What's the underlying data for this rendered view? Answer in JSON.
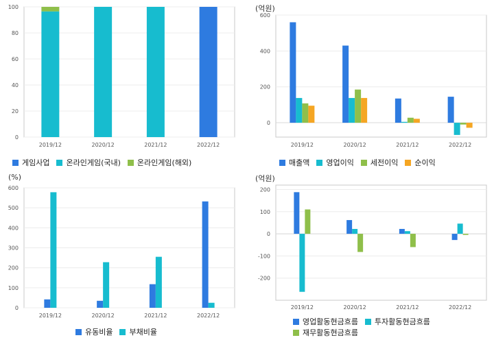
{
  "chart_data": [
    {
      "id": "c1",
      "type": "bar",
      "stacked": true,
      "unit": "",
      "categories": [
        "2019/12",
        "2020/12",
        "2021/12",
        "2022/12"
      ],
      "ylim": [
        0,
        100
      ],
      "yticks": [
        0,
        20,
        40,
        60,
        80,
        100
      ],
      "series": [
        {
          "name": "게임사업",
          "color": "#2e7be0",
          "values": [
            0,
            0,
            0,
            100
          ]
        },
        {
          "name": "온라인게임(국내)",
          "color": "#17bccf",
          "values": [
            96.5,
            100,
            100,
            0
          ]
        },
        {
          "name": "온라인게임(해외)",
          "color": "#8fbf4a",
          "values": [
            3.5,
            0,
            0,
            0
          ]
        }
      ]
    },
    {
      "id": "c2",
      "type": "bar",
      "unit": "(억원)",
      "categories": [
        "2019/12",
        "2020/12",
        "2021/12",
        "2022/12"
      ],
      "ylim": [
        -80,
        600
      ],
      "yticks": [
        0,
        200,
        400,
        600
      ],
      "series": [
        {
          "name": "매출액",
          "color": "#2e7be0",
          "values": [
            560,
            430,
            135,
            145
          ]
        },
        {
          "name": "영업이익",
          "color": "#17bccf",
          "values": [
            138,
            138,
            5,
            -68
          ]
        },
        {
          "name": "세전이익",
          "color": "#8fbf4a",
          "values": [
            108,
            185,
            28,
            -10
          ]
        },
        {
          "name": "순이익",
          "color": "#f5a623",
          "values": [
            95,
            138,
            22,
            -28
          ]
        }
      ]
    },
    {
      "id": "c3",
      "type": "bar",
      "unit": "(%)",
      "categories": [
        "2019/12",
        "2020/12",
        "2021/12",
        "2022/12"
      ],
      "ylim": [
        0,
        600
      ],
      "yticks": [
        0,
        100,
        200,
        300,
        400,
        500,
        600
      ],
      "series": [
        {
          "name": "유동비율",
          "color": "#2e7be0",
          "values": [
            42,
            35,
            118,
            532
          ]
        },
        {
          "name": "부채비율",
          "color": "#17bccf",
          "values": [
            578,
            228,
            255,
            25
          ]
        }
      ]
    },
    {
      "id": "c4",
      "type": "bar",
      "unit": "(억원)",
      "categories": [
        "2019/12",
        "2020/12",
        "2021/12",
        "2022/12"
      ],
      "ylim": [
        -300,
        220
      ],
      "yticks": [
        -200,
        -100,
        0,
        100,
        200
      ],
      "series": [
        {
          "name": "영업활동현금흐름",
          "color": "#2e7be0",
          "values": [
            188,
            62,
            22,
            -28
          ]
        },
        {
          "name": "투자활동현금흐름",
          "color": "#17bccf",
          "values": [
            -262,
            22,
            12,
            46
          ]
        },
        {
          "name": "재무활동현금흐름",
          "color": "#8fbf4a",
          "values": [
            110,
            -82,
            -60,
            -5
          ]
        }
      ]
    }
  ]
}
